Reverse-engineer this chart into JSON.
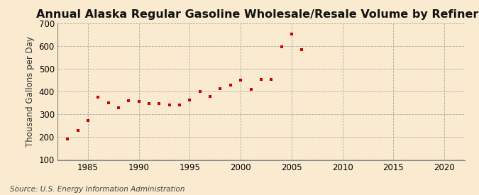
{
  "title": "Annual Alaska Regular Gasoline Wholesale/Resale Volume by Refiners",
  "ylabel": "Thousand Gallons per Day",
  "source": "Source: U.S. Energy Information Administration",
  "background_color": "#faebd0",
  "plot_bg_color": "#f5f0e8",
  "marker_color": "#cc0000",
  "years": [
    1983,
    1984,
    1985,
    1986,
    1987,
    1988,
    1989,
    1990,
    1991,
    1992,
    1993,
    1994,
    1995,
    1996,
    1997,
    1998,
    1999,
    2000,
    2001,
    2002,
    2003,
    2004,
    2005,
    2006
  ],
  "values": [
    193,
    228,
    272,
    375,
    352,
    328,
    360,
    358,
    347,
    347,
    343,
    343,
    363,
    402,
    380,
    412,
    428,
    452,
    411,
    455,
    455,
    598,
    652,
    585
  ],
  "xlim": [
    1982,
    2022
  ],
  "ylim": [
    100,
    700
  ],
  "yticks": [
    100,
    200,
    300,
    400,
    500,
    600,
    700
  ],
  "xticks": [
    1985,
    1990,
    1995,
    2000,
    2005,
    2010,
    2015,
    2020
  ],
  "grid_color": "#aaaaaa",
  "title_fontsize": 11.5,
  "label_fontsize": 8.5,
  "tick_fontsize": 8.5,
  "source_fontsize": 7.5
}
